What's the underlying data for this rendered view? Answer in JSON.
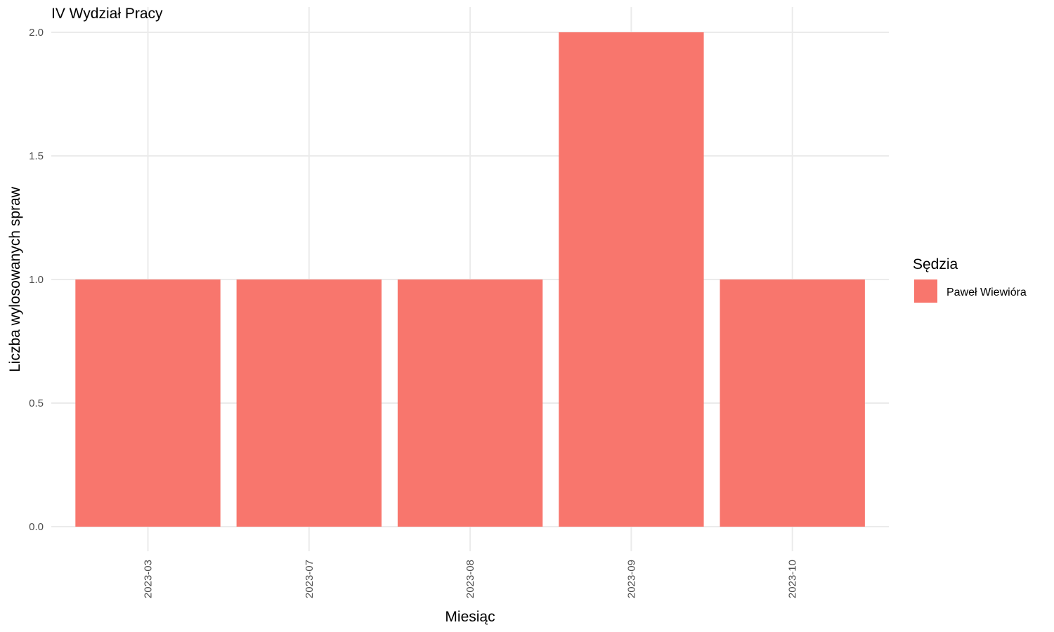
{
  "chart_data": {
    "type": "bar",
    "title": "IV Wydział Pracy",
    "xlabel": "Miesiąc",
    "ylabel": "Liczba wylosowanych spraw",
    "categories": [
      "2023-03",
      "2023-07",
      "2023-08",
      "2023-09",
      "2023-10"
    ],
    "series": [
      {
        "name": "Paweł Wiewióra",
        "values": [
          1,
          1,
          1,
          2,
          1
        ],
        "color": "#F8766D"
      }
    ],
    "ylim": [
      0,
      2
    ],
    "yticks": [
      "0.0",
      "0.5",
      "1.0",
      "1.5",
      "2.0"
    ],
    "grid": true,
    "legend": {
      "title": "Sędzia",
      "position": "right"
    }
  }
}
